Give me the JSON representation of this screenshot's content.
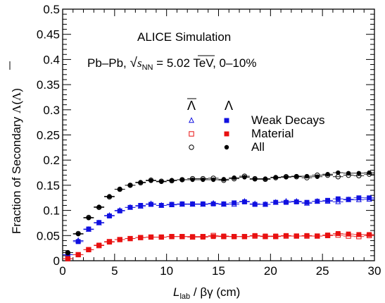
{
  "chart_data": {
    "type": "scatter",
    "xlabel_main": "L",
    "xlabel_sub": "lab",
    "xlabel_rest": " / βγ (cm)",
    "ylabel_prefix": "Fraction of Secondary ",
    "ylabel_lambda": "Λ",
    "ylabel_open": "(",
    "ylabel_close": ")",
    "xlim": [
      0,
      30
    ],
    "ylim": [
      0,
      0.5
    ],
    "x_ticks": [
      0,
      5,
      10,
      15,
      20,
      25,
      30
    ],
    "x_tick_labels": [
      "0",
      "5",
      "10",
      "15",
      "20",
      "25",
      "30"
    ],
    "y_ticks": [
      0,
      0.05,
      0.1,
      0.15,
      0.2,
      0.25,
      0.3,
      0.35,
      0.4,
      0.45,
      0.5
    ],
    "y_tick_labels": [
      "0",
      "0.05",
      "0.1",
      "0.15",
      "0.2",
      "0.25",
      "0.3",
      "0.35",
      "0.4",
      "0.45",
      "0.5"
    ],
    "annotation_title": "ALICE Simulation",
    "annotation_system": "Pb–Pb, ",
    "annotation_sqrt": "√",
    "annotation_s": "s",
    "annotation_nn": "NN",
    "annotation_energy": " = 5.02 TeV, 0–10%",
    "legend": {
      "antilambda_header": "Λ",
      "lambda_header": "Λ",
      "rows": [
        "Weak Decays",
        "Material",
        "All"
      ]
    },
    "colors": {
      "weak": "#1010e0",
      "material": "#e81010",
      "all": "#000000"
    },
    "x": [
      0.5,
      1.5,
      2.5,
      3.5,
      4.5,
      5.5,
      6.5,
      7.5,
      8.5,
      9.5,
      10.5,
      11.5,
      12.5,
      13.5,
      14.5,
      15.5,
      16.5,
      17.5,
      18.5,
      19.5,
      20.5,
      21.5,
      22.5,
      23.5,
      24.5,
      25.5,
      26.5,
      27.5,
      28.5,
      29.5
    ],
    "series": [
      {
        "particle": "antilambda",
        "source": "weak",
        "marker": "open-triangle",
        "values": [
          0.012,
          0.04,
          0.062,
          0.075,
          0.09,
          0.1,
          0.106,
          0.108,
          0.113,
          0.11,
          0.111,
          0.112,
          0.112,
          0.112,
          0.114,
          0.112,
          0.112,
          0.118,
          0.113,
          0.112,
          0.116,
          0.118,
          0.118,
          0.114,
          0.118,
          0.118,
          0.117,
          0.121,
          0.121,
          0.122
        ]
      },
      {
        "particle": "lambda",
        "source": "weak",
        "marker": "filled-square",
        "values": [
          0.012,
          0.038,
          0.063,
          0.076,
          0.089,
          0.099,
          0.106,
          0.11,
          0.112,
          0.11,
          0.112,
          0.113,
          0.113,
          0.113,
          0.113,
          0.113,
          0.115,
          0.117,
          0.112,
          0.112,
          0.116,
          0.116,
          0.117,
          0.116,
          0.118,
          0.12,
          0.123,
          0.122,
          0.125,
          0.125
        ]
      },
      {
        "particle": "antilambda",
        "source": "material",
        "marker": "open-square",
        "values": [
          0.004,
          0.012,
          0.022,
          0.03,
          0.038,
          0.042,
          0.044,
          0.046,
          0.047,
          0.047,
          0.048,
          0.048,
          0.047,
          0.048,
          0.05,
          0.048,
          0.048,
          0.048,
          0.049,
          0.048,
          0.048,
          0.049,
          0.049,
          0.049,
          0.049,
          0.05,
          0.051,
          0.049,
          0.048,
          0.05
        ]
      },
      {
        "particle": "lambda",
        "source": "material",
        "marker": "filled-square",
        "values": [
          0.004,
          0.012,
          0.022,
          0.031,
          0.037,
          0.042,
          0.044,
          0.046,
          0.047,
          0.047,
          0.048,
          0.048,
          0.048,
          0.047,
          0.048,
          0.049,
          0.048,
          0.048,
          0.05,
          0.049,
          0.049,
          0.05,
          0.049,
          0.05,
          0.049,
          0.051,
          0.054,
          0.053,
          0.052,
          0.052
        ]
      },
      {
        "particle": "antilambda",
        "source": "all",
        "marker": "open-circle",
        "values": [
          0.016,
          0.054,
          0.086,
          0.106,
          0.127,
          0.142,
          0.15,
          0.155,
          0.16,
          0.158,
          0.159,
          0.161,
          0.163,
          0.163,
          0.164,
          0.16,
          0.163,
          0.168,
          0.163,
          0.162,
          0.165,
          0.167,
          0.167,
          0.165,
          0.17,
          0.17,
          0.167,
          0.17,
          0.169,
          0.172
        ]
      },
      {
        "particle": "lambda",
        "source": "all",
        "marker": "filled-circle",
        "values": [
          0.016,
          0.053,
          0.085,
          0.107,
          0.128,
          0.142,
          0.15,
          0.156,
          0.159,
          0.157,
          0.16,
          0.161,
          0.161,
          0.161,
          0.161,
          0.162,
          0.165,
          0.166,
          0.162,
          0.163,
          0.166,
          0.166,
          0.168,
          0.168,
          0.167,
          0.172,
          0.175,
          0.174,
          0.174,
          0.175
        ]
      }
    ]
  }
}
